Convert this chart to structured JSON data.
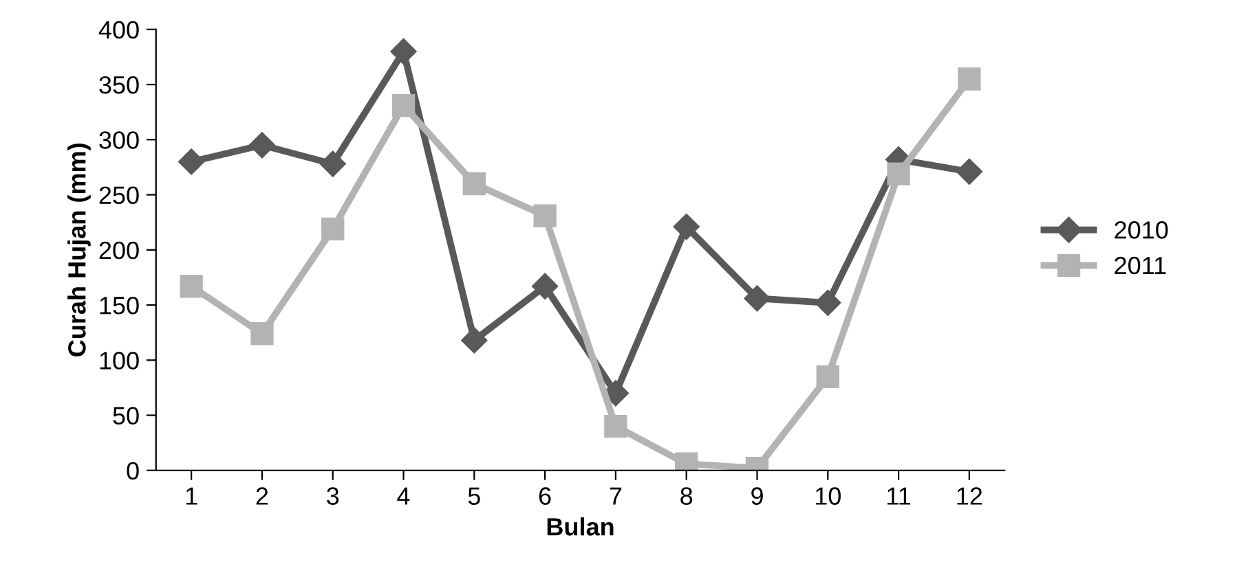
{
  "chart_data": {
    "type": "line",
    "xlabel": "Bulan",
    "ylabel": "Curah Hujan (mm)",
    "categories": [
      "1",
      "2",
      "3",
      "4",
      "5",
      "6",
      "7",
      "8",
      "9",
      "10",
      "11",
      "12"
    ],
    "series": [
      {
        "name": "2010",
        "color": "#595959",
        "marker": "diamond",
        "values": [
          280,
          295,
          278,
          380,
          118,
          167,
          70,
          221,
          156,
          152,
          282,
          271
        ]
      },
      {
        "name": "2011",
        "color": "#b3b3b3",
        "marker": "square",
        "values": [
          167,
          124,
          219,
          331,
          260,
          231,
          40,
          6,
          2,
          85,
          269,
          355
        ]
      }
    ],
    "ylim": [
      0,
      400
    ],
    "yticks": [
      0,
      50,
      100,
      150,
      200,
      250,
      300,
      350,
      400
    ],
    "grid": false,
    "legend": "right",
    "line_style": "solid"
  }
}
